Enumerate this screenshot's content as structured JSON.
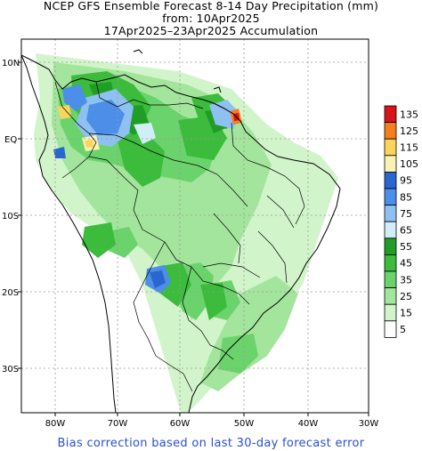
{
  "title": {
    "line1": "NCEP GFS Ensemble Forecast 8-14 Day Precipitation (mm)",
    "line2": "from: 10Apr2025",
    "line3": "17Apr2025–23Apr2025 Accumulation"
  },
  "footer": "Bias correction based on last 30-day forecast error",
  "lat_labels": [
    "10N",
    "EQ",
    "10S",
    "20S",
    "30S"
  ],
  "lon_labels": [
    "80W",
    "70W",
    "60W",
    "50W",
    "40W",
    "30W"
  ],
  "legend": {
    "levels": [
      "135",
      "125",
      "115",
      "105",
      "95",
      "85",
      "75",
      "65",
      "55",
      "45",
      "35",
      "25",
      "15",
      "5"
    ],
    "colors": [
      "#d8141b",
      "#f57f1e",
      "#fbd45b",
      "#f9f2b4",
      "#2a66cf",
      "#4d8fe8",
      "#8ec1f1",
      "#cfeef7",
      "#1f9d26",
      "#3cbb3c",
      "#6bd36b",
      "#a3e59c",
      "#d2f4cb",
      "#ffffff"
    ]
  }
}
